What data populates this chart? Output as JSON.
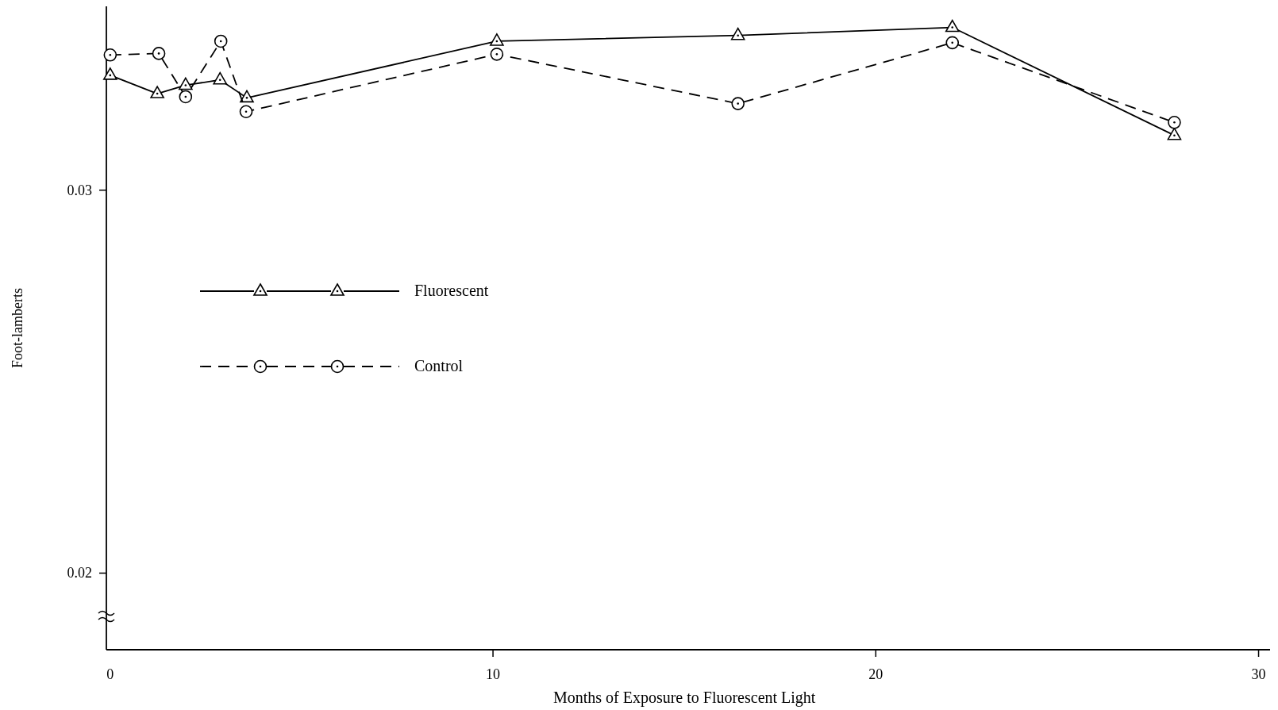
{
  "chart_data": {
    "type": "line",
    "xlabel": "Months of Exposure to Fluorescent Light",
    "ylabel": "Foot-lamberts",
    "xlim": [
      -0.1,
      30.3
    ],
    "xticks": [
      0,
      10,
      20,
      30
    ],
    "ylim": [
      0.018,
      0.0348
    ],
    "yticks": [
      0.02,
      0.03
    ],
    "grid": false,
    "legend": "left",
    "series": [
      {
        "name": "Fluorescent",
        "color": "#000000",
        "marker": "triangle",
        "line_style": "solid",
        "x": [
          0,
          1.23,
          1.97,
          2.87,
          3.57,
          10.1,
          16.4,
          22.0,
          27.8
        ],
        "values": [
          0.033,
          0.03252,
          0.03274,
          0.03288,
          0.03241,
          0.03389,
          0.03404,
          0.03425,
          0.03143
        ]
      },
      {
        "name": "Control",
        "color": "#000000",
        "marker": "circle",
        "line_style": "dashed",
        "x": [
          0,
          1.27,
          1.97,
          2.89,
          3.55,
          10.1,
          16.4,
          22.0,
          27.8
        ],
        "values": [
          0.03353,
          0.03357,
          0.03244,
          0.03389,
          0.03205,
          0.03355,
          0.03226,
          0.03385,
          0.03177
        ]
      }
    ]
  }
}
